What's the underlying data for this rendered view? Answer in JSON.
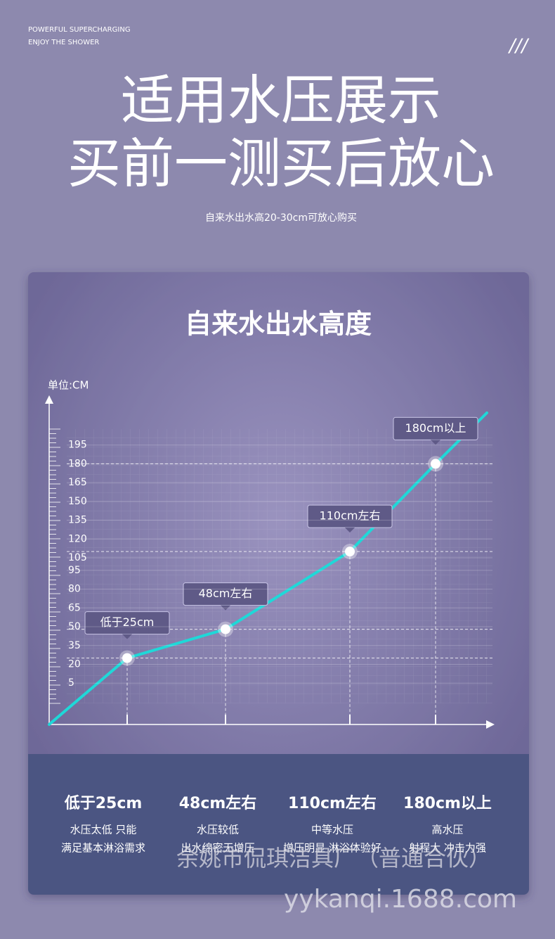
{
  "header": {
    "tagline": [
      "POWERFUL SUPERCHARGING",
      "ENJOY THE SHOWER"
    ],
    "logo": "///",
    "title": [
      "适用水压展示",
      "买前一测买后放心"
    ],
    "subtitle": "自来水出水高20-30cm可放心购买"
  },
  "chart_data": {
    "type": "line",
    "title": "自来水出水高度",
    "y_label": "单位:CM",
    "categories": [
      "低于25cm",
      "48cm左右",
      "110cm左右",
      "180cm以上"
    ],
    "series": [
      {
        "name": null,
        "color": "#1fd8d8",
        "values": [
          25,
          48,
          110,
          180
        ],
        "value_labels": [
          "低于25cm",
          "48cm左右",
          "110cm左右",
          "180cm以上"
        ]
      }
    ],
    "ylim": [
      -28,
      233
    ],
    "yticks": [
      5,
      20,
      35,
      50,
      65,
      80,
      95,
      105,
      120,
      135,
      150,
      165,
      180,
      195
    ],
    "grid": true
  },
  "descriptions": [
    [
      "水压太低 只能",
      "满足基本淋浴需求"
    ],
    [
      "水压较低",
      "出水绵密无增压"
    ],
    [
      "中等水压",
      "增压明显 淋浴体验好"
    ],
    [
      "高水压",
      "射程大 冲击力强"
    ]
  ],
  "watermark": [
    "余姚市侃琪洁具厂（普通合伙）",
    "yykanqi.1688.com"
  ]
}
